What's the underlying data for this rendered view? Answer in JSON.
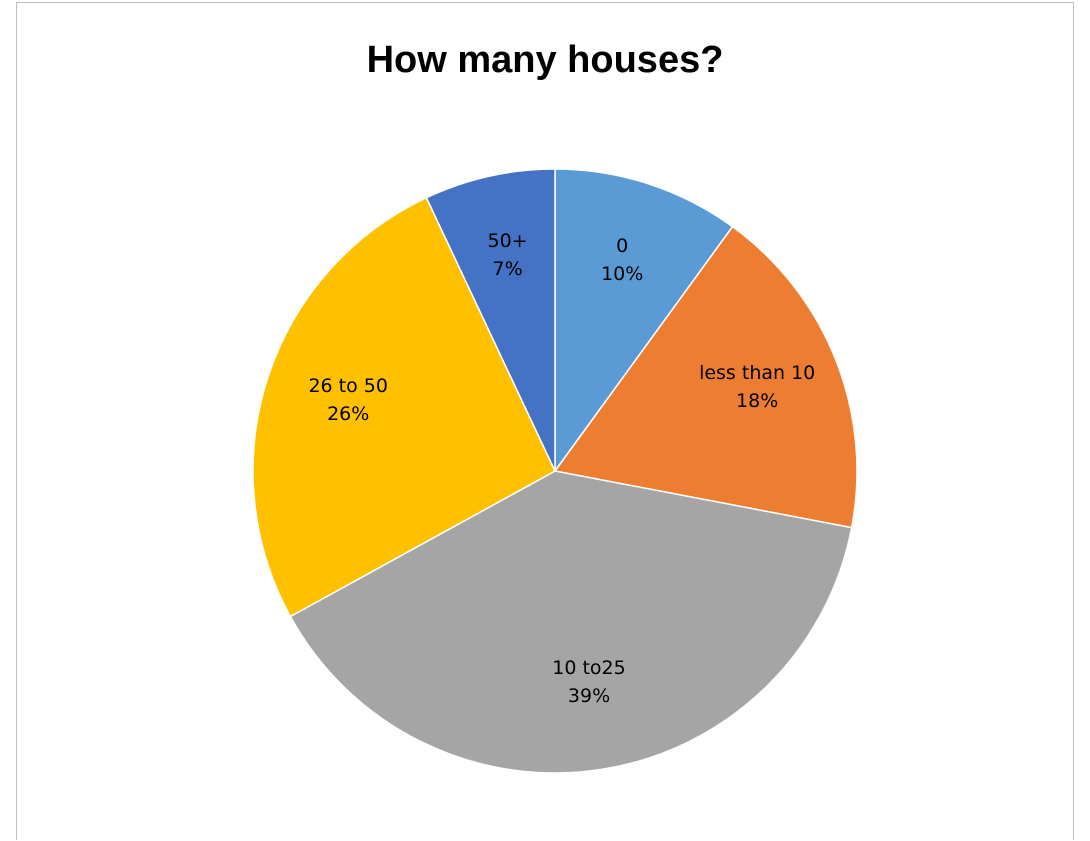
{
  "chart_data": {
    "type": "pie",
    "title": "How many houses?",
    "slices": [
      {
        "label": "0",
        "percent_label": "10%",
        "value": 10,
        "color": "#5B9BD5"
      },
      {
        "label": "less than 10",
        "percent_label": "18%",
        "value": 18,
        "color": "#ED7D31"
      },
      {
        "label": "10 to25",
        "percent_label": "39%",
        "value": 39,
        "color": "#A5A5A5"
      },
      {
        "label": "26 to 50",
        "percent_label": "26%",
        "value": 26,
        "color": "#FFC000"
      },
      {
        "label": "50+",
        "percent_label": "7%",
        "value": 7,
        "color": "#4472C4"
      }
    ],
    "start_angle": "12 o'clock",
    "direction": "clockwise",
    "legend": "none",
    "data_labels": "inside slices"
  }
}
